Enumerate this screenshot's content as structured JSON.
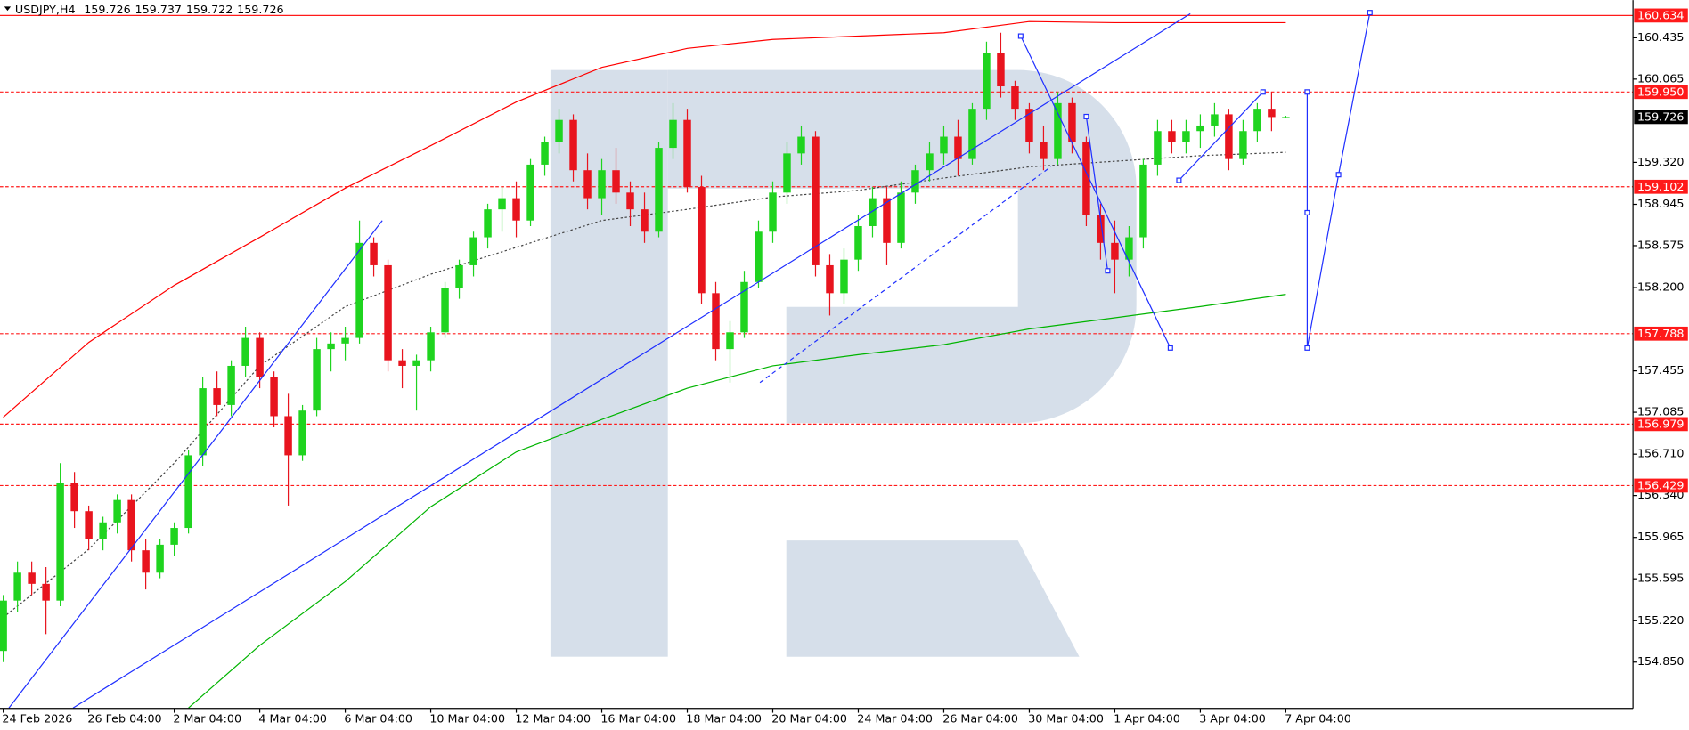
{
  "chart_data": {
    "type": "candlestick",
    "symbol": "USDJPY,H4",
    "categories": [
      "24 Feb 2026",
      null,
      null,
      null,
      null,
      null,
      "26 Feb 04:00",
      null,
      null,
      null,
      null,
      null,
      "2 Mar 04:00",
      null,
      null,
      null,
      null,
      null,
      "4 Mar 04:00",
      null,
      null,
      null,
      null,
      null,
      "6 Mar 04:00",
      null,
      null,
      null,
      null,
      null,
      "10 Mar 04:00",
      null,
      null,
      null,
      null,
      null,
      "12 Mar 04:00",
      null,
      null,
      null,
      null,
      null,
      "16 Mar 04:00",
      null,
      null,
      null,
      null,
      null,
      "18 Mar 04:00",
      null,
      null,
      null,
      null,
      null,
      "20 Mar 04:00",
      null,
      null,
      null,
      null,
      null,
      "24 Mar 04:00",
      null,
      null,
      null,
      null,
      null,
      "26 Mar 04:00",
      null,
      null,
      null,
      null,
      null,
      "30 Mar 04:00",
      null,
      null,
      null,
      null,
      null,
      "1 Apr 04:00",
      null,
      null,
      null,
      null,
      null,
      "3 Apr 04:00",
      null,
      null,
      null,
      null,
      null,
      "7 Apr 04:00"
    ],
    "open": [
      154.95,
      155.4,
      155.65,
      155.55,
      155.4,
      156.45,
      156.2,
      155.95,
      156.1,
      156.3,
      155.85,
      155.65,
      155.9,
      156.05,
      156.7,
      157.3,
      157.15,
      157.5,
      157.75,
      157.4,
      157.05,
      156.7,
      157.1,
      157.65,
      157.7,
      157.75,
      158.6,
      158.4,
      157.55,
      157.5,
      157.55,
      157.8,
      158.2,
      158.4,
      158.65,
      158.9,
      159.0,
      158.8,
      159.3,
      159.5,
      159.7,
      159.25,
      159.0,
      159.25,
      159.05,
      158.9,
      158.7,
      159.45,
      159.7,
      159.1,
      158.15,
      157.65,
      157.8,
      158.25,
      158.7,
      159.05,
      159.4,
      159.55,
      158.4,
      158.15,
      158.45,
      158.75,
      159.0,
      158.6,
      159.05,
      159.25,
      159.4,
      159.55,
      159.35,
      159.8,
      160.3,
      160.0,
      159.8,
      159.5,
      159.35,
      159.85,
      159.5,
      158.85,
      158.6,
      158.45,
      158.65,
      159.3,
      159.6,
      159.5,
      159.6,
      159.65,
      159.75,
      159.35,
      159.6,
      159.8,
      159.726
    ],
    "high": [
      155.45,
      155.75,
      155.75,
      155.7,
      156.63,
      156.55,
      156.25,
      156.15,
      156.35,
      156.35,
      155.95,
      155.95,
      156.1,
      156.75,
      157.4,
      157.45,
      157.55,
      157.85,
      157.8,
      157.45,
      157.25,
      157.15,
      157.75,
      157.8,
      157.85,
      158.8,
      158.65,
      158.45,
      157.65,
      157.6,
      157.85,
      158.25,
      158.45,
      158.7,
      158.95,
      159.1,
      159.15,
      159.35,
      159.55,
      159.8,
      159.75,
      159.4,
      159.35,
      159.45,
      159.15,
      159.05,
      159.5,
      159.85,
      159.8,
      159.2,
      158.25,
      157.9,
      158.35,
      158.8,
      159.15,
      159.5,
      159.65,
      159.6,
      158.5,
      158.55,
      158.85,
      159.1,
      159.1,
      159.15,
      159.3,
      159.5,
      159.65,
      159.7,
      159.85,
      160.4,
      160.48,
      160.05,
      159.85,
      159.65,
      159.95,
      159.9,
      159.55,
      158.95,
      158.8,
      158.75,
      159.35,
      159.7,
      159.7,
      159.7,
      159.75,
      159.85,
      159.8,
      159.7,
      159.85,
      159.95,
      159.737
    ],
    "low": [
      154.85,
      155.3,
      155.45,
      155.1,
      155.35,
      156.05,
      155.85,
      155.85,
      156.0,
      155.75,
      155.5,
      155.6,
      155.8,
      156.0,
      156.6,
      157.05,
      157.05,
      157.4,
      157.3,
      156.95,
      156.25,
      156.65,
      157.05,
      157.45,
      157.55,
      157.7,
      158.3,
      157.45,
      157.3,
      157.1,
      157.45,
      157.75,
      158.1,
      158.3,
      158.55,
      158.7,
      158.65,
      158.75,
      159.2,
      159.4,
      159.15,
      158.9,
      158.85,
      158.95,
      158.75,
      158.6,
      158.65,
      159.35,
      159.05,
      158.05,
      157.55,
      157.35,
      157.75,
      158.2,
      158.6,
      158.95,
      159.3,
      158.3,
      157.95,
      158.05,
      158.35,
      158.65,
      158.4,
      158.55,
      158.95,
      159.15,
      159.3,
      159.2,
      159.3,
      159.7,
      159.9,
      159.7,
      159.4,
      159.25,
      159.3,
      159.4,
      158.75,
      158.45,
      158.15,
      158.3,
      158.55,
      159.2,
      159.4,
      159.4,
      159.45,
      159.55,
      159.25,
      159.3,
      159.5,
      159.6,
      159.722
    ],
    "close": [
      155.4,
      155.65,
      155.55,
      155.4,
      156.45,
      156.2,
      155.95,
      156.1,
      156.3,
      155.85,
      155.65,
      155.9,
      156.05,
      156.7,
      157.3,
      157.15,
      157.5,
      157.75,
      157.4,
      157.05,
      156.7,
      157.1,
      157.65,
      157.7,
      157.75,
      158.6,
      158.4,
      157.55,
      157.5,
      157.55,
      157.8,
      158.2,
      158.4,
      158.65,
      158.9,
      159.0,
      158.8,
      159.3,
      159.5,
      159.7,
      159.25,
      159.0,
      159.25,
      159.05,
      158.9,
      158.7,
      159.45,
      159.7,
      159.1,
      158.15,
      157.65,
      157.8,
      158.25,
      158.7,
      159.05,
      159.4,
      159.55,
      158.4,
      158.15,
      158.45,
      158.75,
      159.0,
      158.6,
      159.05,
      159.25,
      159.4,
      159.55,
      159.35,
      159.8,
      160.3,
      160.0,
      159.8,
      159.5,
      159.35,
      159.85,
      159.5,
      158.85,
      158.6,
      158.45,
      158.65,
      159.3,
      159.6,
      159.5,
      159.6,
      159.65,
      159.75,
      159.35,
      159.6,
      159.8,
      159.726,
      159.726
    ],
    "up_color": "#1fd41f",
    "down_color": "#e8141e",
    "ylim": [
      154.436,
      160.743
    ],
    "yticks": [
      160.435,
      160.065,
      {
        "value": 159.32,
        "label": "159.320"
      },
      158.945,
      158.575,
      {
        "value": 158.2,
        "label": "158.200"
      },
      157.455,
      157.085,
      {
        "value": 156.71,
        "label": "156.710"
      },
      {
        "value": 156.34,
        "label": "156.340"
      },
      155.965,
      155.595,
      {
        "value": 155.22,
        "label": "155.220"
      },
      {
        "value": 154.85,
        "label": "154.850"
      }
    ],
    "levels": [
      160.634,
      {
        "value": 159.95,
        "label": "159.950"
      },
      159.102,
      157.788,
      156.979,
      156.429
    ],
    "level_styles": [
      "solid",
      "dashed",
      "dashed",
      "dashed",
      "dashed",
      "dashed"
    ],
    "level_color": "#ff1a1a",
    "ma": [
      {
        "color": "#ff0000",
        "style": "solid",
        "x": [
          0,
          6,
          12,
          18,
          24,
          30,
          36,
          42,
          48,
          54,
          60,
          66,
          72,
          78,
          84,
          90
        ],
        "values": [
          157.04,
          157.71,
          158.22,
          158.65,
          159.09,
          159.47,
          159.86,
          160.17,
          160.34,
          160.42,
          160.45,
          160.48,
          160.58,
          160.57,
          160.57,
          160.57
        ]
      },
      {
        "color": "#444444",
        "style": "dotted",
        "x": [
          0,
          6,
          12,
          18,
          24,
          30,
          36,
          42,
          48,
          54,
          60,
          66,
          72,
          78,
          84,
          90
        ],
        "values": [
          155.25,
          155.86,
          156.63,
          157.5,
          158.03,
          158.32,
          158.56,
          158.8,
          158.9,
          159.01,
          159.07,
          159.18,
          159.28,
          159.33,
          159.38,
          159.41
        ]
      },
      {
        "color": "#00b400",
        "style": "solid",
        "x": [
          13,
          18,
          24,
          30,
          36,
          42,
          48,
          54,
          60,
          66,
          72,
          78,
          84,
          90
        ],
        "values": [
          154.44,
          155.0,
          155.57,
          156.24,
          156.73,
          157.02,
          157.3,
          157.5,
          157.6,
          157.69,
          157.83,
          157.93,
          158.03,
          158.14
        ]
      }
    ],
    "drawing_color": "#1f2fff",
    "drawings": [
      {
        "points": [
          [
            0.4,
            154.44
          ],
          [
            26.6,
            158.8
          ]
        ]
      },
      {
        "points": [
          [
            4.9,
            154.44
          ],
          [
            83.3,
            160.65
          ]
        ]
      },
      {
        "points": [
          [
            71.4,
            160.45
          ],
          [
            81.9,
            157.66
          ]
        ],
        "markers": true
      },
      {
        "points": [
          [
            53.1,
            157.35
          ],
          [
            73.5,
            159.28
          ]
        ],
        "dashed": true
      },
      {
        "points": [
          [
            76.0,
            159.73
          ],
          [
            77.5,
            158.35
          ]
        ],
        "markers": true
      },
      {
        "points": [
          [
            82.5,
            159.16
          ],
          [
            88.4,
            159.95
          ]
        ],
        "markers": true
      },
      {
        "points": [
          [
            91.5,
            159.95
          ],
          [
            91.5,
            158.87
          ],
          [
            91.5,
            157.66
          ],
          [
            93.7,
            159.21
          ],
          [
            95.9,
            160.66
          ]
        ],
        "markers": true
      }
    ]
  }
}
